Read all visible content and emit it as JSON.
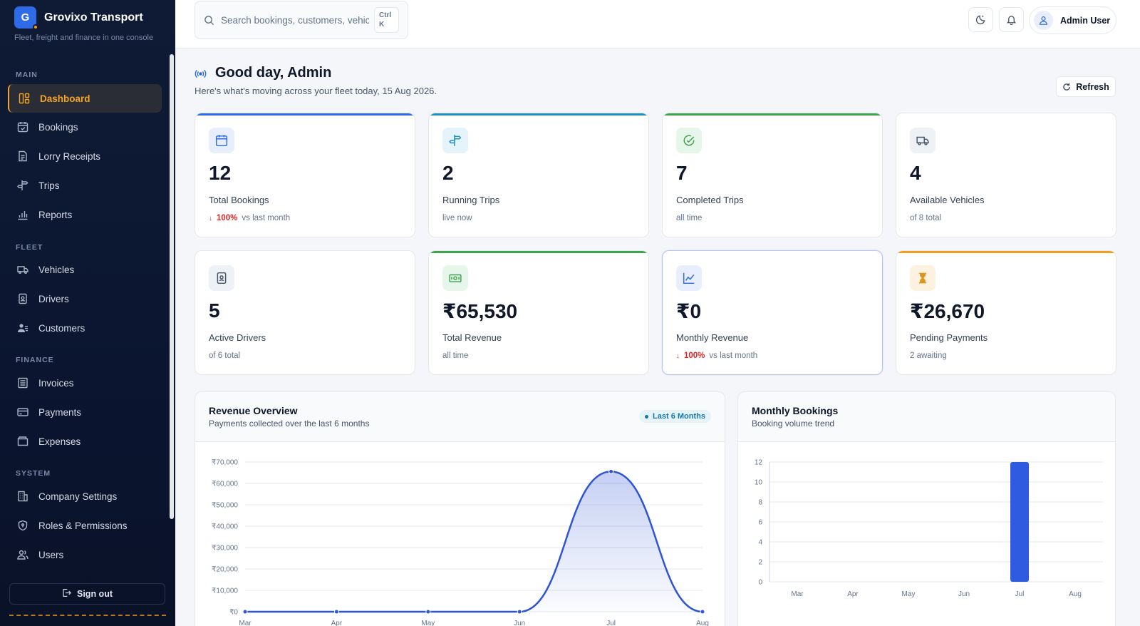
{
  "brand": {
    "logo_letter": "G",
    "name": "Grovixo Transport",
    "tagline": "Fleet, freight and finance in one console"
  },
  "sidebar": {
    "sections": {
      "main": "MAIN",
      "fleet": "FLEET",
      "finance": "FINANCE",
      "system": "SYSTEM"
    },
    "items": [
      {
        "label": "Dashboard",
        "icon": "dashboard-icon",
        "active": true
      },
      {
        "label": "Bookings",
        "icon": "calendar-check-icon"
      },
      {
        "label": "Lorry Receipts",
        "icon": "receipt-icon"
      },
      {
        "label": "Trips",
        "icon": "signpost-icon"
      },
      {
        "label": "Reports",
        "icon": "bar-chart-icon"
      },
      {
        "label": "Vehicles",
        "icon": "truck-icon"
      },
      {
        "label": "Drivers",
        "icon": "id-badge-icon"
      },
      {
        "label": "Customers",
        "icon": "customers-icon"
      },
      {
        "label": "Invoices",
        "icon": "invoice-icon"
      },
      {
        "label": "Payments",
        "icon": "credit-card-icon"
      },
      {
        "label": "Expenses",
        "icon": "wallet-icon"
      },
      {
        "label": "Company Settings",
        "icon": "building-icon"
      },
      {
        "label": "Roles & Permissions",
        "icon": "shield-icon"
      },
      {
        "label": "Users",
        "icon": "users-icon"
      }
    ],
    "sign_out": "Sign out"
  },
  "topbar": {
    "search_placeholder": "Search bookings, customers, vehicles...",
    "shortcut": "Ctrl K",
    "user_name": "Admin User"
  },
  "header": {
    "greeting": "Good day, Admin",
    "subtitle": "Here's what's moving across your fleet today, 15 Aug 2026.",
    "refresh": "Refresh"
  },
  "stats": [
    {
      "value": "12",
      "label": "Total Bookings",
      "pct": "100%",
      "sub": "vs last month",
      "trend": "down",
      "accent": "#2f6ae8",
      "icon": "calendar-icon"
    },
    {
      "value": "2",
      "label": "Running Trips",
      "sub": "live now",
      "accent": "#1f8fbf",
      "icon": "signpost-icon"
    },
    {
      "value": "7",
      "label": "Completed Trips",
      "sub": "all time",
      "accent": "#3fa34d",
      "icon": "check-circle-icon"
    },
    {
      "value": "4",
      "label": "Available Vehicles",
      "sub": "of 8 total",
      "accent": "",
      "icon": "truck-icon"
    },
    {
      "value": "5",
      "label": "Active Drivers",
      "sub": "of 6 total",
      "accent": "",
      "icon": "id-badge-icon"
    },
    {
      "value": "₹65,530",
      "label": "Total Revenue",
      "sub": "all time",
      "accent": "#3fa34d",
      "icon": "cash-icon"
    },
    {
      "value": "₹0",
      "label": "Monthly Revenue",
      "pct": "100%",
      "sub": "vs last month",
      "trend": "down",
      "accent": "",
      "icon": "trend-chart-icon"
    },
    {
      "value": "₹26,670",
      "label": "Pending Payments",
      "sub": "2 awaiting",
      "accent": "#f0a020",
      "icon": "hourglass-icon"
    }
  ],
  "revenue_panel": {
    "title": "Revenue Overview",
    "subtitle": "Payments collected over the last 6 months",
    "badge": "Last 6 Months"
  },
  "bookings_panel": {
    "title": "Monthly Bookings",
    "subtitle": "Booking volume trend"
  },
  "chart_data": [
    {
      "type": "area",
      "title": "Revenue Overview",
      "categories": [
        "Mar",
        "Apr",
        "May",
        "Jun",
        "Jul",
        "Aug"
      ],
      "values": [
        0,
        0,
        0,
        0,
        65530,
        0
      ],
      "ylim": [
        0,
        70000
      ],
      "yticks": [
        "₹0",
        "₹10,000",
        "₹20,000",
        "₹30,000",
        "₹40,000",
        "₹50,000",
        "₹60,000",
        "₹70,000"
      ],
      "color": "#2f55d4"
    },
    {
      "type": "bar",
      "title": "Monthly Bookings",
      "categories": [
        "Mar",
        "Apr",
        "May",
        "Jun",
        "Jul",
        "Aug"
      ],
      "values": [
        0,
        0,
        0,
        0,
        12,
        0
      ],
      "ylim": [
        0,
        12
      ],
      "yticks": [
        "0",
        "2",
        "4",
        "6",
        "8",
        "10",
        "12"
      ],
      "color": "#2f5be0"
    }
  ]
}
